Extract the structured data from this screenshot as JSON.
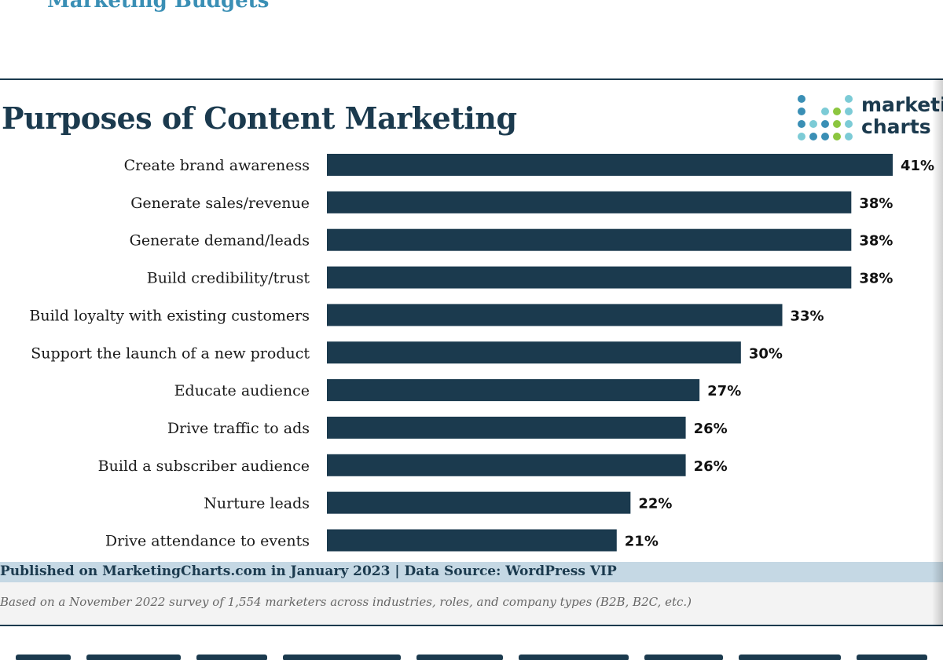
{
  "header": {
    "clipped_heading": "Marketing Budgets"
  },
  "logo": {
    "line1": "marketing",
    "line2": "charts",
    "dot_colors": [
      "#3a8fb5",
      "#7ccbd6",
      "#8cc63f"
    ]
  },
  "colors": {
    "bar": "#1b3a4e",
    "text": "#1b3a4e",
    "footer_band": "#c5d8e4",
    "note_band": "#f3f3f3"
  },
  "chart_data": {
    "type": "bar",
    "orientation": "horizontal",
    "title": "Purposes of Content Marketing",
    "categories": [
      "Create brand awareness",
      "Generate sales/revenue",
      "Generate demand/leads",
      "Build credibility/trust",
      "Build loyalty with existing customers",
      "Support the launch of a new product",
      "Educate audience",
      "Drive traffic to ads",
      "Build a subscriber audience",
      "Nurture leads",
      "Drive attendance to events"
    ],
    "values": [
      41,
      38,
      38,
      38,
      33,
      30,
      27,
      26,
      26,
      22,
      21
    ],
    "value_suffix": "%",
    "xlim": [
      0,
      41
    ],
    "grid": false,
    "legend": "none"
  },
  "footer": {
    "published": "Published on MarketingCharts.com in January 2023 | Data Source: WordPress VIP",
    "note": "Based on a November 2022 survey of 1,554 marketers across industries, roles, and company types (B2B, B2C, etc.)"
  }
}
